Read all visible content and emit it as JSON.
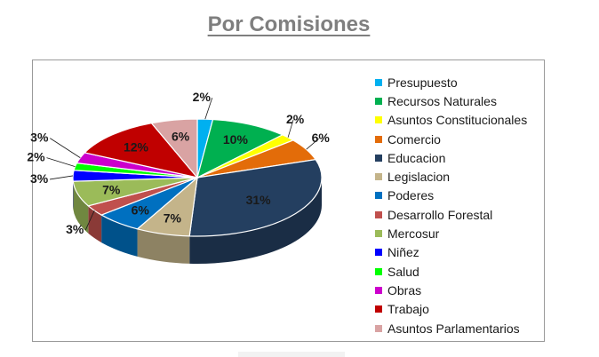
{
  "page": {
    "title": "Por Comisiones"
  },
  "chart_data": {
    "type": "pie",
    "title": "Por Comisiones",
    "legend_position": "right",
    "series": [
      {
        "name": "Presupuesto",
        "value": 2,
        "label": "2%",
        "color": "#00b0f0"
      },
      {
        "name": "Recursos Naturales",
        "value": 10,
        "label": "10%",
        "color": "#00b050"
      },
      {
        "name": "Asuntos Constitucionales",
        "value": 2,
        "label": "2%",
        "color": "#ffff00"
      },
      {
        "name": "Comercio",
        "value": 6,
        "label": "6%",
        "color": "#e36c09"
      },
      {
        "name": "Educacion",
        "value": 31,
        "label": "31%",
        "color": "#243f60"
      },
      {
        "name": "Legislacion",
        "value": 7,
        "label": "7%",
        "color": "#c4b48a"
      },
      {
        "name": "Poderes",
        "value": 6,
        "label": "6%",
        "color": "#0070c0"
      },
      {
        "name": "Desarrollo Forestal",
        "value": 3,
        "label": "3%",
        "color": "#c0504d"
      },
      {
        "name": "Mercosur",
        "value": 7,
        "label": "7%",
        "color": "#9bbb59"
      },
      {
        "name": "Niñez",
        "value": 3,
        "label": "3%",
        "color": "#0000ff"
      },
      {
        "name": "Salud",
        "value": 2,
        "label": "2%",
        "color": "#00ff00"
      },
      {
        "name": "Obras",
        "value": 3,
        "label": "3%",
        "color": "#cc00cc"
      },
      {
        "name": "Trabajo",
        "value": 12,
        "label": "12%",
        "color": "#c00000"
      },
      {
        "name": "Asuntos Parlamentarios",
        "value": 6,
        "label": "6%",
        "color": "#d9a3a3"
      }
    ]
  }
}
